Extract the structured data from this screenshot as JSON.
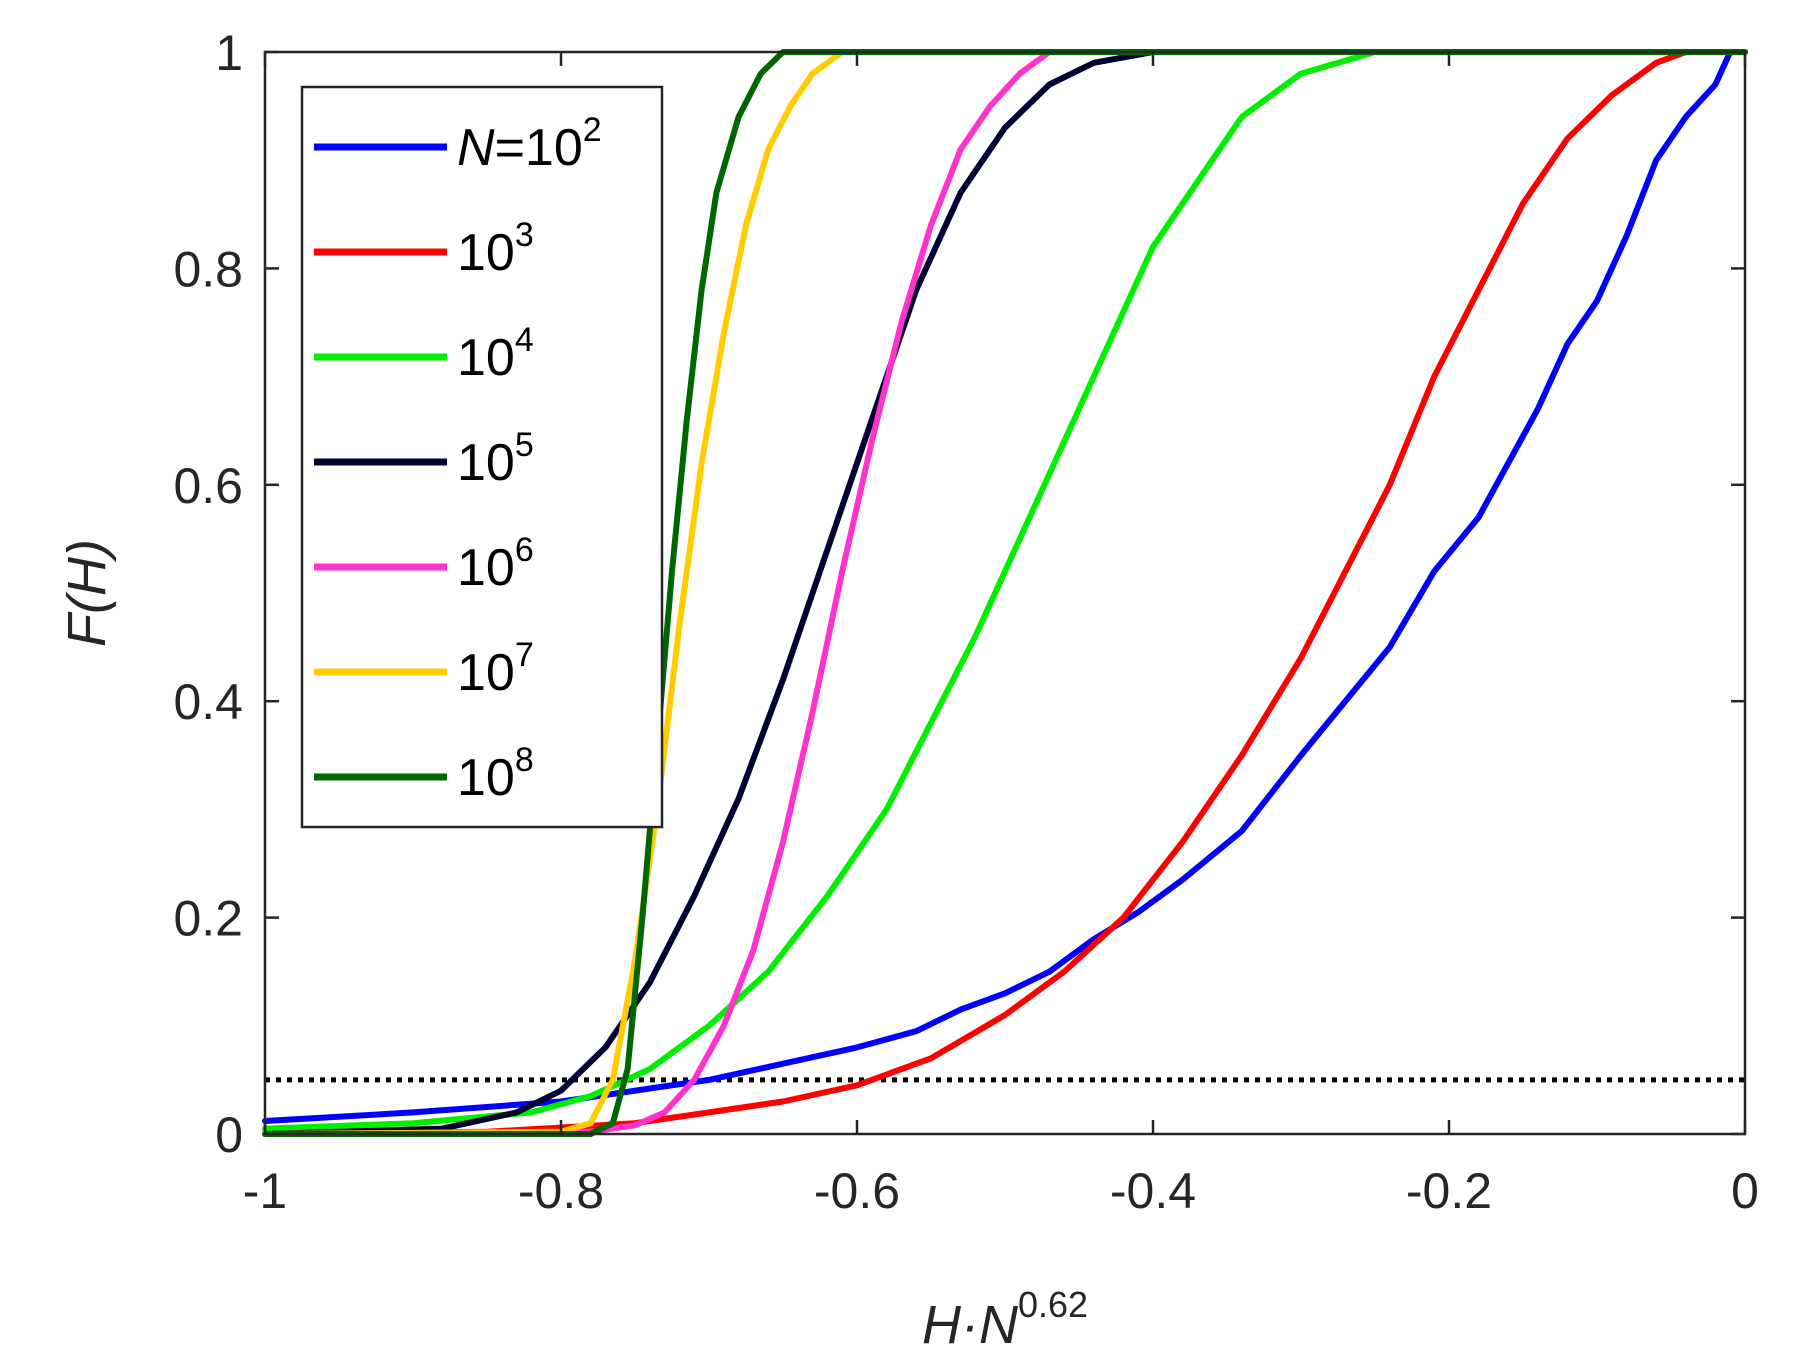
{
  "chart_data": {
    "type": "line",
    "xlabel": {
      "base": "H·N",
      "sup": "0.62"
    },
    "ylabel": {
      "base": "F(H)"
    },
    "xlim": [
      -1,
      0
    ],
    "ylim": [
      0,
      1
    ],
    "xticks": [
      -1,
      -0.8,
      -0.6,
      -0.4,
      -0.2,
      0
    ],
    "xtick_labels": [
      "-1",
      "-0.8",
      "-0.6",
      "-0.4",
      "-0.2",
      "0"
    ],
    "yticks": [
      0,
      0.2,
      0.4,
      0.6,
      0.8,
      1
    ],
    "ytick_labels": [
      "0",
      "0.2",
      "0.4",
      "0.6",
      "0.8",
      "1"
    ],
    "grid": false,
    "box": true,
    "legend_position": "top-left",
    "reference_line": {
      "y": 0.05,
      "style": "dotted",
      "color": "#000000"
    },
    "series": [
      {
        "label_base": "N=10",
        "label_sup": "2",
        "label_italic_prefix": "N",
        "color": "#0000ff",
        "points": [
          [
            -1.0,
            0.012
          ],
          [
            -0.9,
            0.02
          ],
          [
            -0.8,
            0.03
          ],
          [
            -0.75,
            0.04
          ],
          [
            -0.7,
            0.05
          ],
          [
            -0.65,
            0.065
          ],
          [
            -0.6,
            0.08
          ],
          [
            -0.56,
            0.095
          ],
          [
            -0.53,
            0.115
          ],
          [
            -0.5,
            0.13
          ],
          [
            -0.47,
            0.15
          ],
          [
            -0.44,
            0.18
          ],
          [
            -0.41,
            0.205
          ],
          [
            -0.38,
            0.235
          ],
          [
            -0.34,
            0.28
          ],
          [
            -0.3,
            0.35
          ],
          [
            -0.27,
            0.4
          ],
          [
            -0.24,
            0.45
          ],
          [
            -0.21,
            0.52
          ],
          [
            -0.18,
            0.57
          ],
          [
            -0.16,
            0.62
          ],
          [
            -0.14,
            0.67
          ],
          [
            -0.12,
            0.73
          ],
          [
            -0.1,
            0.77
          ],
          [
            -0.08,
            0.83
          ],
          [
            -0.06,
            0.9
          ],
          [
            -0.04,
            0.94
          ],
          [
            -0.02,
            0.97
          ],
          [
            -0.01,
            1.0
          ]
        ]
      },
      {
        "label_base": "10",
        "label_sup": "3",
        "color": "#ff0000",
        "points": [
          [
            -1.0,
            0.0
          ],
          [
            -0.85,
            0.002
          ],
          [
            -0.75,
            0.01
          ],
          [
            -0.7,
            0.02
          ],
          [
            -0.65,
            0.03
          ],
          [
            -0.6,
            0.045
          ],
          [
            -0.55,
            0.07
          ],
          [
            -0.5,
            0.11
          ],
          [
            -0.46,
            0.15
          ],
          [
            -0.42,
            0.2
          ],
          [
            -0.38,
            0.27
          ],
          [
            -0.34,
            0.35
          ],
          [
            -0.3,
            0.44
          ],
          [
            -0.27,
            0.52
          ],
          [
            -0.24,
            0.6
          ],
          [
            -0.21,
            0.7
          ],
          [
            -0.18,
            0.78
          ],
          [
            -0.15,
            0.86
          ],
          [
            -0.12,
            0.92
          ],
          [
            -0.09,
            0.96
          ],
          [
            -0.06,
            0.99
          ],
          [
            -0.04,
            1.0
          ],
          [
            0.0,
            1.0
          ]
        ]
      },
      {
        "label_base": "10",
        "label_sup": "4",
        "color": "#00ee00",
        "points": [
          [
            -1.0,
            0.005
          ],
          [
            -0.9,
            0.01
          ],
          [
            -0.82,
            0.02
          ],
          [
            -0.78,
            0.035
          ],
          [
            -0.74,
            0.06
          ],
          [
            -0.7,
            0.1
          ],
          [
            -0.66,
            0.15
          ],
          [
            -0.62,
            0.22
          ],
          [
            -0.58,
            0.3
          ],
          [
            -0.55,
            0.38
          ],
          [
            -0.52,
            0.46
          ],
          [
            -0.49,
            0.55
          ],
          [
            -0.46,
            0.64
          ],
          [
            -0.43,
            0.73
          ],
          [
            -0.4,
            0.82
          ],
          [
            -0.37,
            0.88
          ],
          [
            -0.34,
            0.94
          ],
          [
            -0.3,
            0.98
          ],
          [
            -0.25,
            1.0
          ],
          [
            0.0,
            1.0
          ]
        ]
      },
      {
        "label_base": "10",
        "label_sup": "5",
        "color": "#000033",
        "points": [
          [
            -1.0,
            0.0
          ],
          [
            -0.88,
            0.005
          ],
          [
            -0.83,
            0.02
          ],
          [
            -0.8,
            0.04
          ],
          [
            -0.77,
            0.08
          ],
          [
            -0.74,
            0.14
          ],
          [
            -0.71,
            0.22
          ],
          [
            -0.68,
            0.31
          ],
          [
            -0.65,
            0.42
          ],
          [
            -0.62,
            0.54
          ],
          [
            -0.59,
            0.66
          ],
          [
            -0.56,
            0.78
          ],
          [
            -0.53,
            0.87
          ],
          [
            -0.5,
            0.93
          ],
          [
            -0.47,
            0.97
          ],
          [
            -0.44,
            0.99
          ],
          [
            -0.4,
            1.0
          ],
          [
            0.0,
            1.0
          ]
        ]
      },
      {
        "label_base": "10",
        "label_sup": "6",
        "color": "#ff33cc",
        "points": [
          [
            -1.0,
            0.0
          ],
          [
            -0.78,
            0.002
          ],
          [
            -0.75,
            0.008
          ],
          [
            -0.73,
            0.02
          ],
          [
            -0.71,
            0.05
          ],
          [
            -0.69,
            0.1
          ],
          [
            -0.67,
            0.17
          ],
          [
            -0.65,
            0.27
          ],
          [
            -0.63,
            0.39
          ],
          [
            -0.61,
            0.52
          ],
          [
            -0.59,
            0.64
          ],
          [
            -0.57,
            0.75
          ],
          [
            -0.55,
            0.84
          ],
          [
            -0.53,
            0.91
          ],
          [
            -0.51,
            0.95
          ],
          [
            -0.49,
            0.98
          ],
          [
            -0.47,
            1.0
          ],
          [
            0.0,
            1.0
          ]
        ]
      },
      {
        "label_base": "10",
        "label_sup": "7",
        "color": "#ffcc00",
        "points": [
          [
            -1.0,
            0.0
          ],
          [
            -0.8,
            0.002
          ],
          [
            -0.78,
            0.01
          ],
          [
            -0.765,
            0.05
          ],
          [
            -0.75,
            0.16
          ],
          [
            -0.735,
            0.3
          ],
          [
            -0.72,
            0.47
          ],
          [
            -0.705,
            0.62
          ],
          [
            -0.69,
            0.74
          ],
          [
            -0.675,
            0.84
          ],
          [
            -0.66,
            0.91
          ],
          [
            -0.645,
            0.95
          ],
          [
            -0.63,
            0.98
          ],
          [
            -0.61,
            1.0
          ],
          [
            0.0,
            1.0
          ]
        ]
      },
      {
        "label_base": "10",
        "label_sup": "8",
        "color": "#006600",
        "points": [
          [
            -1.0,
            0.0
          ],
          [
            -0.78,
            0.0
          ],
          [
            -0.765,
            0.01
          ],
          [
            -0.755,
            0.06
          ],
          [
            -0.745,
            0.2
          ],
          [
            -0.735,
            0.36
          ],
          [
            -0.725,
            0.52
          ],
          [
            -0.715,
            0.66
          ],
          [
            -0.705,
            0.78
          ],
          [
            -0.695,
            0.87
          ],
          [
            -0.68,
            0.94
          ],
          [
            -0.665,
            0.98
          ],
          [
            -0.65,
            1.0
          ],
          [
            0.0,
            1.0
          ]
        ]
      }
    ]
  }
}
